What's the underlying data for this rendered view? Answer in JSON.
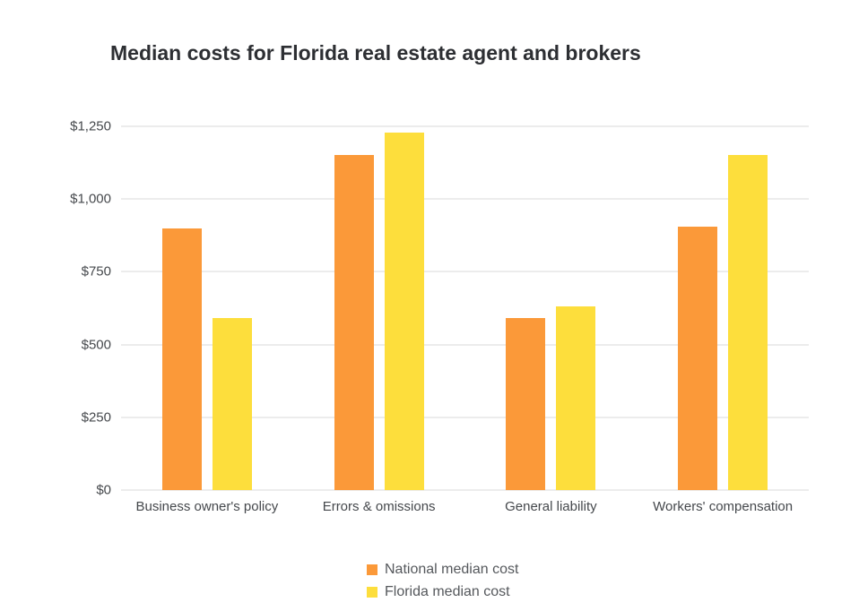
{
  "title": {
    "text": "Median costs for Florida real estate agent and brokers"
  },
  "colors": {
    "background": "#ffffff",
    "grid": "#dadada",
    "axis_text": "#45484c",
    "legend_text": "#55585c",
    "title_text": "#2d2f33",
    "national": "#fb9939",
    "florida": "#fdde3c"
  },
  "chart_data": {
    "type": "bar",
    "title": "Median costs for Florida real estate agent and brokers",
    "categories": [
      "Business owner's policy",
      "Errors & omissions",
      "General liability",
      "Workers' compensation"
    ],
    "series": [
      {
        "name": "National median cost",
        "color": "#fb9939",
        "values": [
          900,
          1150,
          590,
          905
        ]
      },
      {
        "name": "Florida median cost",
        "color": "#fdde3c",
        "values": [
          590,
          1230,
          630,
          1150
        ]
      }
    ],
    "xlabel": "",
    "ylabel": "",
    "ylim": [
      0,
      1250
    ],
    "yticks": [
      0,
      250,
      500,
      750,
      1000,
      1250
    ],
    "ytick_labels": [
      "$0",
      "$250",
      "$500",
      "$750",
      "$1,000",
      "$1,250"
    ],
    "grid": "horizontal",
    "legend_position": "bottom"
  }
}
